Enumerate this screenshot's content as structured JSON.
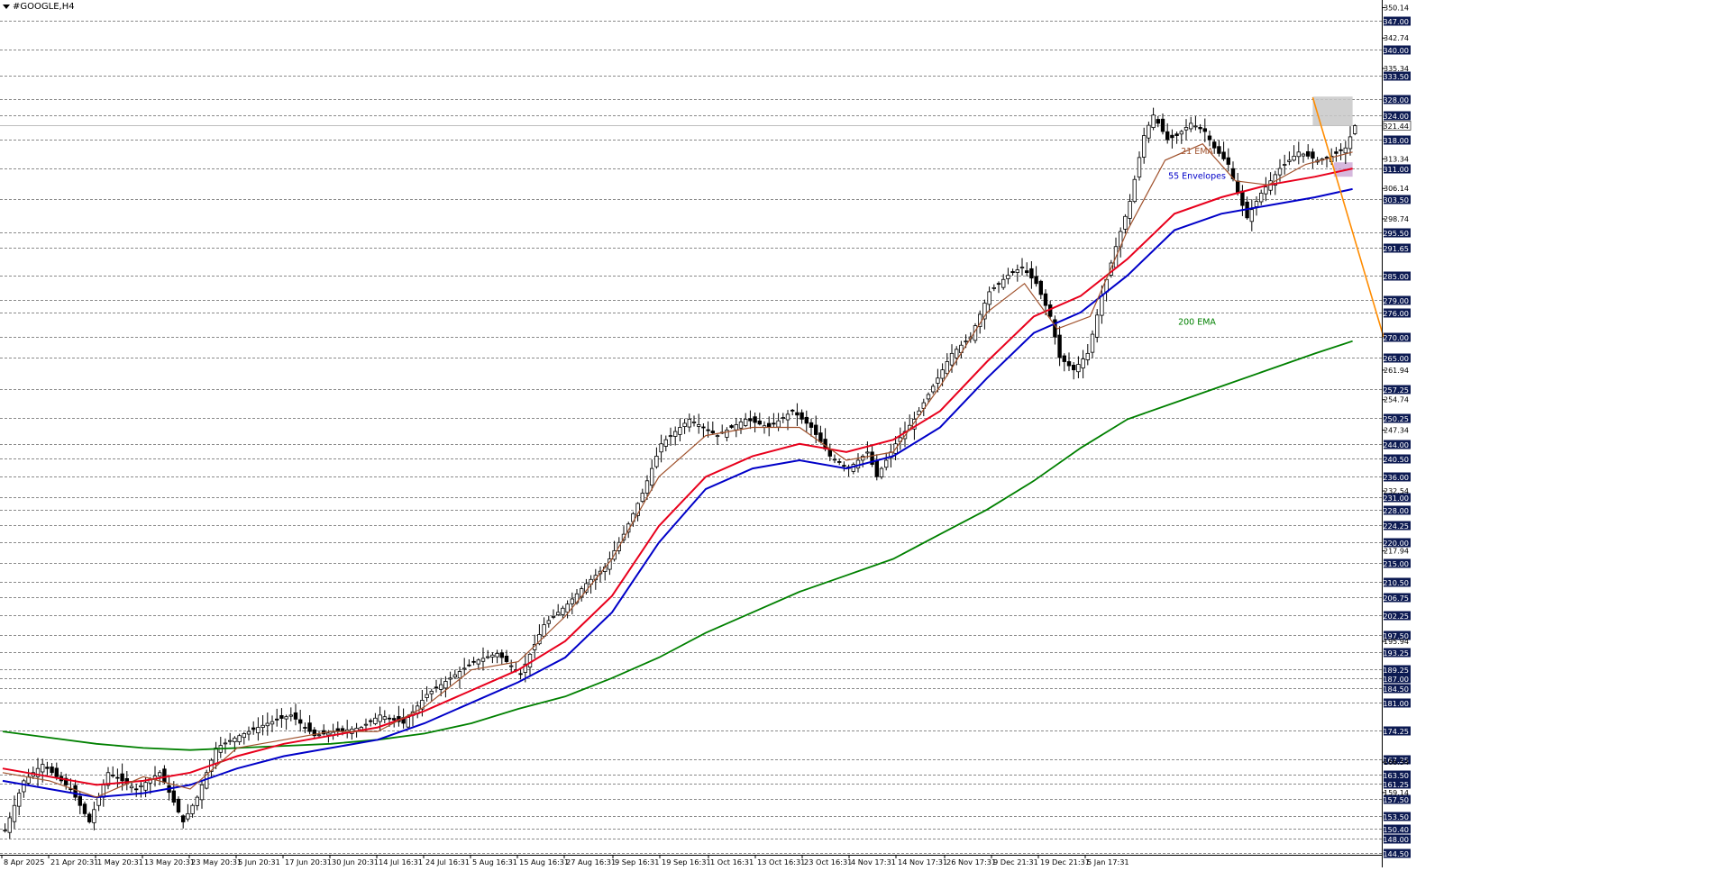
{
  "window": {
    "title": "#GOOGLE,H4"
  },
  "colors": {
    "background": "#ffffff",
    "grid": "#646464",
    "candle": "#000000",
    "ema21": "#a0522d",
    "envelope_upper": "#e8001c",
    "envelope_lower": "#0000c8",
    "ema200": "#008000",
    "trendline": "#ff8c00",
    "zone_resistance": "#c8c8c8",
    "zone_support": "#c8a0d2",
    "level_label_bg": "#0c1a52",
    "level_label_text": "#ffffff"
  },
  "chart_data": {
    "type": "candlestick",
    "symbol": "#GOOGLE",
    "timeframe": "H4",
    "ylim": [
      144.0,
      352.0
    ],
    "x_tick_labels": [
      "8 Apr 2025",
      "21 Apr 20:31",
      "1 May 20:31",
      "13 May 20:31",
      "23 May 20:31",
      "5 Jun 20:31",
      "17 Jun 20:31",
      "30 Jun 20:31",
      "14 Jul 16:31",
      "24 Jul 16:31",
      "5 Aug 16:31",
      "15 Aug 16:31",
      "27 Aug 16:31",
      "9 Sep 16:31",
      "19 Sep 16:31",
      "1 Oct 16:31",
      "13 Oct 16:31",
      "23 Oct 16:31",
      "4 Nov 17:31",
      "14 Nov 17:31",
      "26 Nov 17:31",
      "9 Dec 21:31",
      "19 Dec 21:31",
      "5 Jan 17:31"
    ],
    "y_tick_labels": [
      "350.14",
      "342.74",
      "335.34",
      "313.34",
      "306.14",
      "298.74",
      "261.94",
      "254.74",
      "247.34",
      "232.54",
      "217.94",
      "195.94",
      "166.54",
      "159.14"
    ],
    "level_labels": [
      "347.00",
      "340.00",
      "333.50",
      "328.00",
      "324.00",
      "318.00",
      "311.00",
      "303.50",
      "295.50",
      "291.65",
      "285.00",
      "279.00",
      "276.00",
      "270.00",
      "265.00",
      "257.25",
      "250.25",
      "244.00",
      "240.50",
      "236.00",
      "231.00",
      "228.00",
      "224.25",
      "220.00",
      "215.00",
      "210.50",
      "206.75",
      "202.25",
      "197.50",
      "193.25",
      "189.25",
      "187.00",
      "184.50",
      "181.00",
      "174.25",
      "167.25",
      "163.50",
      "161.25",
      "157.50",
      "153.50",
      "150.40",
      "148.00",
      "144.50"
    ],
    "current_price": "321.44",
    "close_path": [
      [
        0,
        150
      ],
      [
        4,
        162
      ],
      [
        8,
        166
      ],
      [
        14,
        160
      ],
      [
        18,
        152
      ],
      [
        22,
        164
      ],
      [
        28,
        160
      ],
      [
        33,
        164
      ],
      [
        38,
        152
      ],
      [
        41,
        158
      ],
      [
        45,
        170
      ],
      [
        50,
        173
      ],
      [
        56,
        176
      ],
      [
        61,
        178
      ],
      [
        66,
        173
      ],
      [
        71,
        174
      ],
      [
        76,
        175
      ],
      [
        80,
        178
      ],
      [
        85,
        176
      ],
      [
        90,
        183
      ],
      [
        95,
        187
      ],
      [
        100,
        191
      ],
      [
        105,
        193
      ],
      [
        110,
        188
      ],
      [
        115,
        200
      ],
      [
        120,
        205
      ],
      [
        124,
        210
      ],
      [
        128,
        214
      ],
      [
        132,
        222
      ],
      [
        136,
        232
      ],
      [
        140,
        244
      ],
      [
        146,
        250
      ],
      [
        152,
        246
      ],
      [
        158,
        250
      ],
      [
        163,
        248
      ],
      [
        168,
        252
      ],
      [
        172,
        248
      ],
      [
        176,
        241
      ],
      [
        180,
        238
      ],
      [
        184,
        242
      ],
      [
        186,
        236
      ],
      [
        190,
        244
      ],
      [
        194,
        250
      ],
      [
        198,
        258
      ],
      [
        202,
        266
      ],
      [
        206,
        270
      ],
      [
        210,
        281
      ],
      [
        214,
        285
      ],
      [
        217,
        287
      ],
      [
        220,
        283
      ],
      [
        223,
        275
      ],
      [
        225,
        265
      ],
      [
        228,
        262
      ],
      [
        231,
        266
      ],
      [
        234,
        280
      ],
      [
        237,
        292
      ],
      [
        240,
        303
      ],
      [
        243,
        319
      ],
      [
        245,
        324
      ],
      [
        248,
        318
      ],
      [
        250,
        319
      ],
      [
        253,
        322
      ],
      [
        256,
        320
      ],
      [
        258,
        316
      ],
      [
        261,
        312
      ],
      [
        263,
        305
      ],
      [
        265,
        299
      ],
      [
        268,
        305
      ],
      [
        272,
        311
      ],
      [
        276,
        315
      ],
      [
        280,
        313
      ],
      [
        283,
        314
      ],
      [
        286,
        316
      ],
      [
        288,
        321.4
      ]
    ],
    "ema21_path": [
      [
        0,
        164
      ],
      [
        10,
        162
      ],
      [
        20,
        158
      ],
      [
        30,
        163
      ],
      [
        40,
        160
      ],
      [
        50,
        170
      ],
      [
        60,
        172
      ],
      [
        70,
        174
      ],
      [
        80,
        174
      ],
      [
        90,
        180
      ],
      [
        100,
        189
      ],
      [
        110,
        191
      ],
      [
        120,
        202
      ],
      [
        130,
        216
      ],
      [
        140,
        236
      ],
      [
        150,
        246
      ],
      [
        160,
        248
      ],
      [
        170,
        248
      ],
      [
        180,
        240
      ],
      [
        190,
        242
      ],
      [
        200,
        258
      ],
      [
        210,
        276
      ],
      [
        218,
        283
      ],
      [
        225,
        272
      ],
      [
        232,
        275
      ],
      [
        240,
        296
      ],
      [
        248,
        313
      ],
      [
        256,
        317
      ],
      [
        263,
        308
      ],
      [
        270,
        307
      ],
      [
        278,
        312
      ],
      [
        288,
        315
      ]
    ],
    "envelope_upper_path": [
      [
        0,
        165
      ],
      [
        10,
        163
      ],
      [
        20,
        161
      ],
      [
        30,
        162
      ],
      [
        40,
        164
      ],
      [
        50,
        168
      ],
      [
        60,
        171
      ],
      [
        70,
        173
      ],
      [
        80,
        175
      ],
      [
        90,
        179
      ],
      [
        100,
        184
      ],
      [
        110,
        189
      ],
      [
        120,
        196
      ],
      [
        130,
        207
      ],
      [
        140,
        224
      ],
      [
        150,
        236
      ],
      [
        160,
        241
      ],
      [
        170,
        244
      ],
      [
        180,
        242
      ],
      [
        190,
        245
      ],
      [
        200,
        252
      ],
      [
        210,
        264
      ],
      [
        220,
        275
      ],
      [
        230,
        280
      ],
      [
        240,
        289
      ],
      [
        250,
        300
      ],
      [
        260,
        304
      ],
      [
        270,
        307
      ],
      [
        280,
        309
      ],
      [
        288,
        311
      ]
    ],
    "envelope_lower_path": [
      [
        0,
        162
      ],
      [
        10,
        160
      ],
      [
        20,
        158
      ],
      [
        30,
        159
      ],
      [
        40,
        161
      ],
      [
        50,
        165
      ],
      [
        60,
        168
      ],
      [
        70,
        170
      ],
      [
        80,
        172
      ],
      [
        90,
        176
      ],
      [
        100,
        181
      ],
      [
        110,
        186
      ],
      [
        120,
        192
      ],
      [
        130,
        203
      ],
      [
        140,
        220
      ],
      [
        150,
        233
      ],
      [
        160,
        238
      ],
      [
        170,
        240
      ],
      [
        180,
        238
      ],
      [
        190,
        241
      ],
      [
        200,
        248
      ],
      [
        210,
        260
      ],
      [
        220,
        271
      ],
      [
        230,
        276
      ],
      [
        240,
        285
      ],
      [
        250,
        296
      ],
      [
        260,
        300
      ],
      [
        270,
        302
      ],
      [
        280,
        304
      ],
      [
        288,
        306
      ]
    ],
    "ema200_path": [
      [
        0,
        174
      ],
      [
        10,
        172.5
      ],
      [
        20,
        171
      ],
      [
        30,
        170
      ],
      [
        40,
        169.5
      ],
      [
        50,
        170
      ],
      [
        60,
        170.5
      ],
      [
        70,
        171
      ],
      [
        80,
        172
      ],
      [
        90,
        173.5
      ],
      [
        100,
        176
      ],
      [
        110,
        179.5
      ],
      [
        120,
        182.5
      ],
      [
        130,
        187
      ],
      [
        140,
        192
      ],
      [
        150,
        198
      ],
      [
        160,
        203
      ],
      [
        170,
        208
      ],
      [
        180,
        212
      ],
      [
        190,
        216
      ],
      [
        200,
        222
      ],
      [
        210,
        228
      ],
      [
        220,
        235
      ],
      [
        230,
        243
      ],
      [
        240,
        250
      ],
      [
        250,
        254
      ],
      [
        260,
        258
      ],
      [
        270,
        262
      ],
      [
        280,
        266
      ],
      [
        288,
        269
      ]
    ],
    "trendline": [
      [
        279.5,
        328.3
      ],
      [
        1535,
        270.0
      ]
    ],
    "zone_resistance": [
      [
        279.5,
        288
      ],
      [
        321.5,
        328.5
      ]
    ],
    "zone_support": [
      [
        284,
        288
      ],
      [
        309,
        312.5
      ]
    ],
    "annotations": [
      {
        "text": "21 EMA",
        "y": 314.5
      },
      {
        "text": "55 Envelopes",
        "y": 308.5
      },
      {
        "text": "200 EMA",
        "y": 273.0
      }
    ]
  }
}
